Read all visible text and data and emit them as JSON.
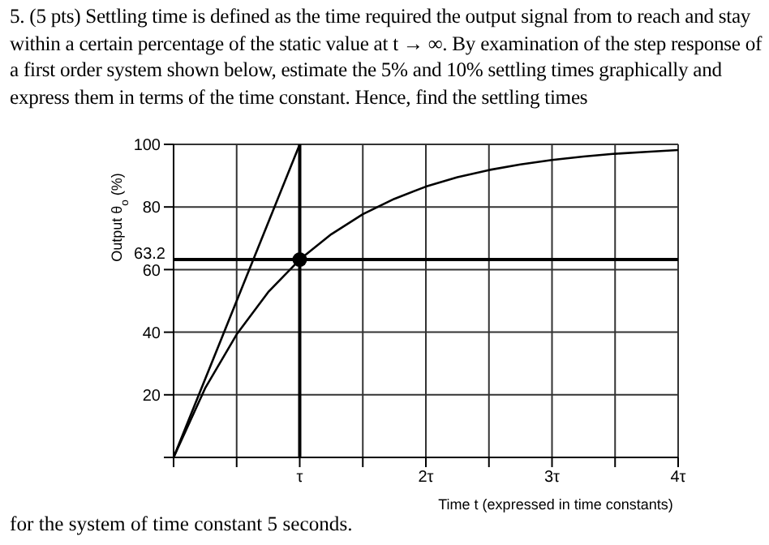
{
  "chart_data": {
    "type": "line",
    "title": "5. (5 pts) Settling time is defined as the time required the output signal from to reach and stay within a certain percentage of the static value at t → ∞. By examination of the step response of a first order system shown below, estimate the 5% and 10% settling times graphically and express them in terms of the time constant. Hence, find the settling times",
    "annotations": [
      "for the system of time constant 5 seconds."
    ],
    "xlabel": "Time t (expressed in time constants)",
    "ylabel": "Output θ$_{o}$ (%)",
    "xlim": [
      0,
      4
    ],
    "xticks": [
      {
        "value": 0,
        "label": null
      },
      {
        "value": 0.5,
        "label": null
      },
      {
        "value": 1,
        "label": "τ"
      },
      {
        "value": 1.5,
        "label": null
      },
      {
        "value": 2,
        "label": "2τ"
      },
      {
        "value": 2.5,
        "label": null
      },
      {
        "value": 3,
        "label": "3τ"
      },
      {
        "value": 3.5,
        "label": null
      },
      {
        "value": 4,
        "label": "4τ"
      }
    ],
    "ylim": [
      0,
      100
    ],
    "yticks": [
      {
        "value": 0,
        "label": null
      },
      20,
      40,
      60,
      80,
      100
    ],
    "grid": true,
    "line_style": "solid",
    "series": [
      {
        "color": "#000000",
        "marker": "none",
        "x": [
          0,
          0.25,
          0.5,
          0.75,
          1,
          1.25,
          1.5,
          1.75,
          2,
          2.25,
          2.5,
          2.75,
          3,
          3.25,
          3.5,
          3.75,
          4
        ],
        "values": [
          0,
          22.1,
          39.3,
          52.8,
          63.2,
          71.3,
          77.7,
          82.6,
          86.5,
          89.5,
          91.8,
          93.6,
          95,
          96.1,
          97,
          97.6,
          98.2
        ]
      },
      {
        "color": "#000000",
        "marker": "none",
        "x": [
          0,
          1
        ],
        "values": [
          0,
          100
        ]
      },
      {
        "type": "scatter",
        "color": "#000000",
        "marker": "circle",
        "x": [
          1
        ],
        "values": [
          63.2
        ]
      }
    ],
    "ref_lines": [
      {
        "axis": "y",
        "value": 63.2,
        "label": "63.2",
        "color": "#000000"
      },
      {
        "axis": "x",
        "value": 1,
        "label": null,
        "color": "#000000"
      }
    ]
  }
}
